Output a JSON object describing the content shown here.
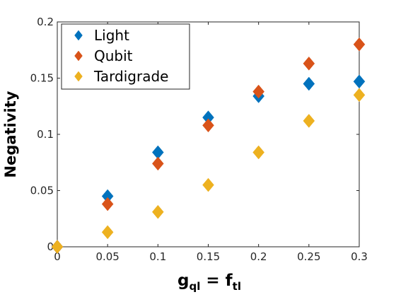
{
  "chart_data": {
    "type": "scatter",
    "ylabel": "Negativity",
    "xlabel_main": "g",
    "xlabel_sub1": "ql",
    "xlabel_eq": " = f",
    "xlabel_sub2": "tl",
    "xlim": [
      0,
      0.3
    ],
    "ylim": [
      0,
      0.2
    ],
    "x_ticks": [
      "0",
      "0.05",
      "0.1",
      "0.15",
      "0.2",
      "0.25",
      "0.3"
    ],
    "y_ticks": [
      "0",
      "0.05",
      "0.1",
      "0.15",
      "0.2"
    ],
    "grid": false,
    "legend_position": "top-left",
    "series": [
      {
        "name": "Light",
        "color": "#0072BD",
        "points": [
          [
            0,
            0
          ],
          [
            0.05,
            0.045
          ],
          [
            0.1,
            0.084
          ],
          [
            0.15,
            0.115
          ],
          [
            0.2,
            0.134
          ],
          [
            0.25,
            0.145
          ],
          [
            0.3,
            0.147
          ]
        ]
      },
      {
        "name": "Qubit",
        "color": "#D95319",
        "points": [
          [
            0,
            0
          ],
          [
            0.05,
            0.038
          ],
          [
            0.1,
            0.074
          ],
          [
            0.15,
            0.108
          ],
          [
            0.2,
            0.138
          ],
          [
            0.25,
            0.163
          ],
          [
            0.3,
            0.18
          ]
        ]
      },
      {
        "name": "Tardigrade",
        "color": "#EDB120",
        "points": [
          [
            0,
            0
          ],
          [
            0.05,
            0.013
          ],
          [
            0.1,
            0.031
          ],
          [
            0.15,
            0.055
          ],
          [
            0.2,
            0.084
          ],
          [
            0.25,
            0.112
          ],
          [
            0.3,
            0.135
          ]
        ]
      }
    ]
  }
}
